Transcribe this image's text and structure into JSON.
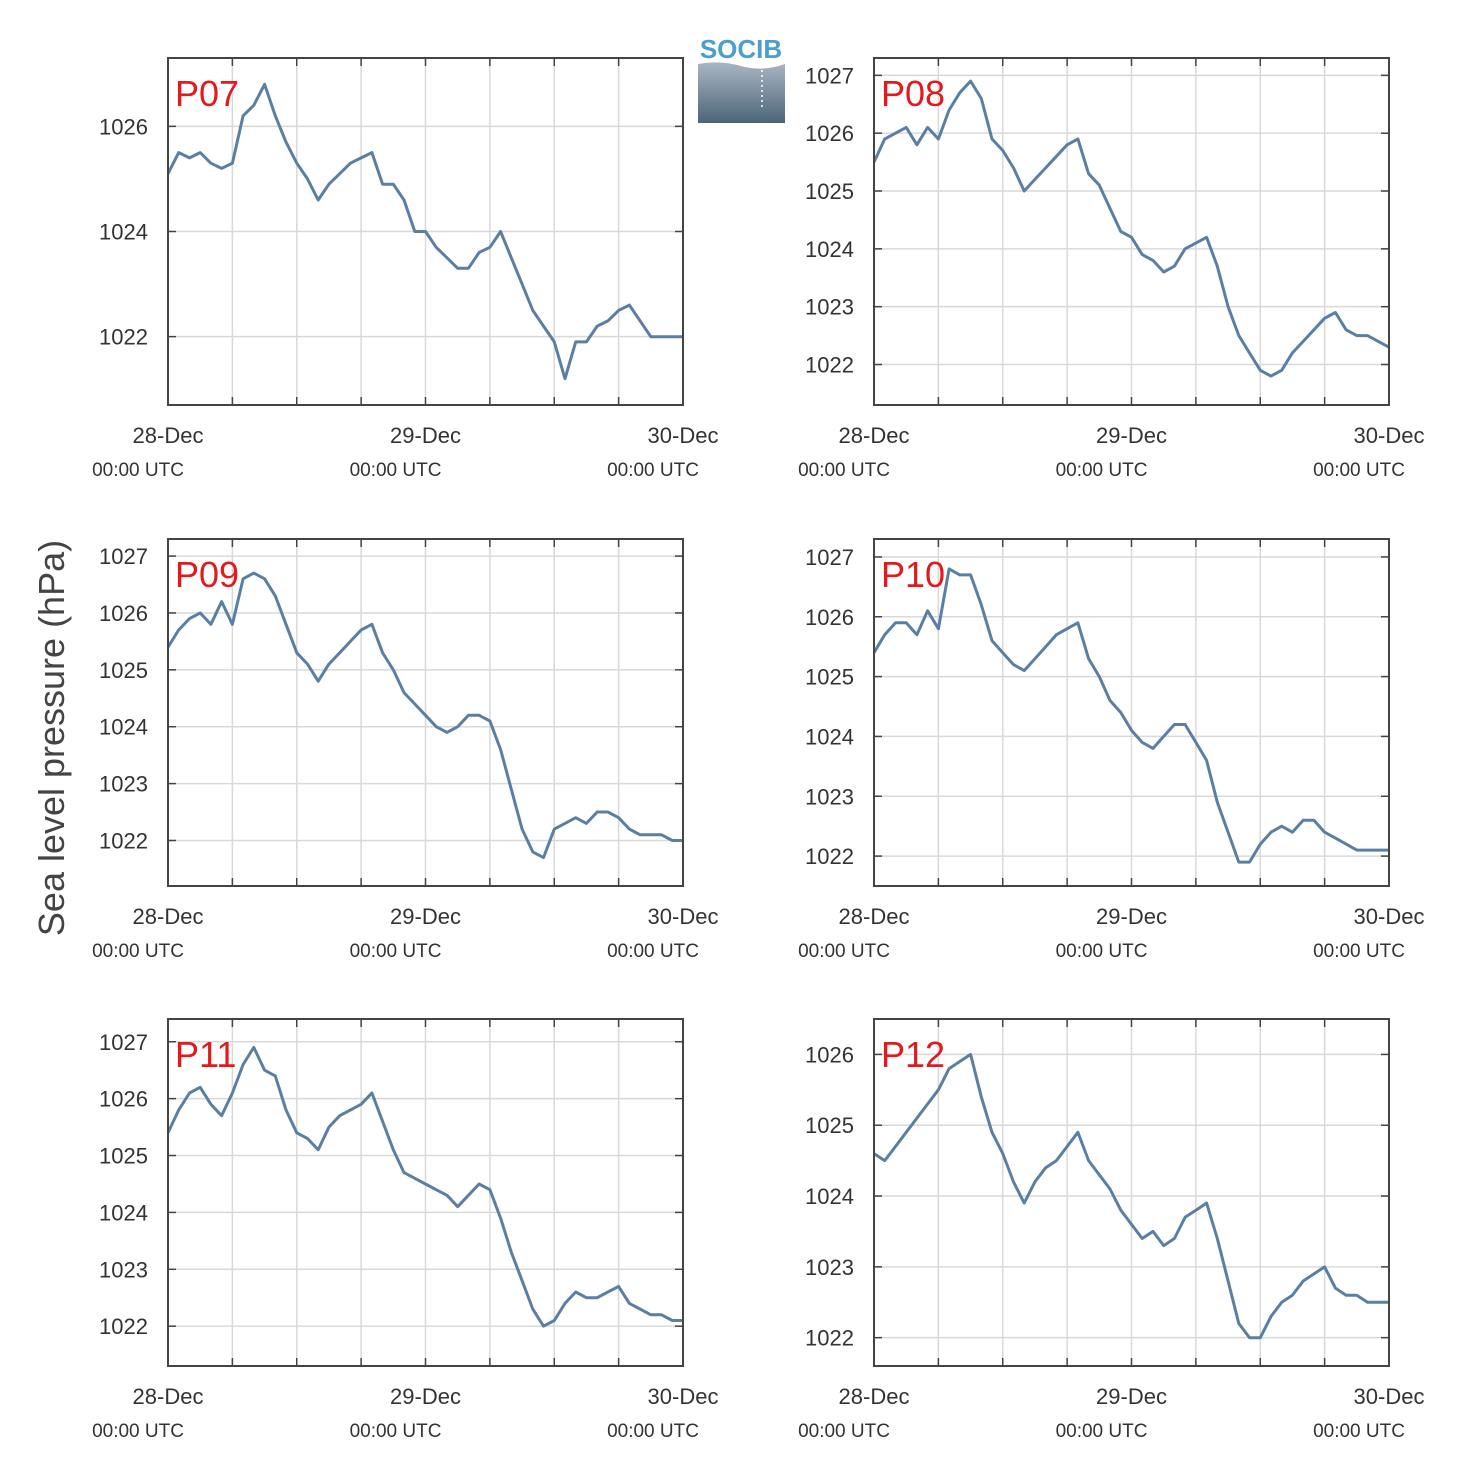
{
  "ylabel": "Sea level pressure (hPa)",
  "logo": {
    "text": "SOCIB",
    "color": "#4a9fd0"
  },
  "colors": {
    "line": "#5b7fa3",
    "station_label": "#e31a1c",
    "grid": "#d9d9d9",
    "axes": "#444444"
  },
  "xaxis": {
    "ticks": [
      {
        "x": 0,
        "date": "28-Dec",
        "time": "00:00 UTC"
      },
      {
        "x": 24,
        "date": "29-Dec",
        "time": "00:00 UTC"
      },
      {
        "x": 48,
        "date": "30-Dec",
        "time": "00:00 UTC"
      }
    ],
    "minor_ticks": [
      6,
      12,
      18,
      30,
      36,
      42
    ]
  },
  "chart_data": [
    {
      "type": "line",
      "station": "P07",
      "x_unit": "hours since 28-Dec 00:00 UTC",
      "xlim": [
        0,
        48
      ],
      "ylim": [
        1020.7,
        1027.3
      ],
      "yticks": [
        1022,
        1024,
        1026
      ],
      "series": [
        {
          "x": [
            0,
            1,
            2,
            3,
            4,
            5,
            6,
            7,
            8,
            9,
            10,
            11,
            12,
            13,
            14,
            15,
            16,
            17,
            18,
            19,
            20,
            21,
            22,
            23,
            24,
            25,
            26,
            27,
            28,
            29,
            30,
            31,
            32,
            33,
            34,
            35,
            36,
            37,
            38,
            39,
            40,
            41,
            42,
            43,
            44,
            45,
            46,
            47,
            48
          ],
          "values": [
            1025.1,
            1025.5,
            1025.4,
            1025.5,
            1025.3,
            1025.2,
            1025.3,
            1026.2,
            1026.4,
            1026.8,
            1026.2,
            1025.7,
            1025.3,
            1025.0,
            1024.6,
            1024.9,
            1025.1,
            1025.3,
            1025.4,
            1025.5,
            1024.9,
            1024.9,
            1024.6,
            1024.0,
            1024.0,
            1023.7,
            1023.5,
            1023.3,
            1023.3,
            1023.6,
            1023.7,
            1024.0,
            1023.5,
            1023.0,
            1022.5,
            1022.2,
            1021.9,
            1021.2,
            1021.9,
            1021.9,
            1022.2,
            1022.3,
            1022.5,
            1022.6,
            1022.3,
            1022.0,
            1022.0,
            1022.0,
            1022.0
          ]
        }
      ]
    },
    {
      "type": "line",
      "station": "P08",
      "x_unit": "hours since 28-Dec 00:00 UTC",
      "xlim": [
        0,
        48
      ],
      "ylim": [
        1021.3,
        1027.3
      ],
      "yticks": [
        1022,
        1023,
        1024,
        1025,
        1026,
        1027
      ],
      "series": [
        {
          "x": [
            0,
            1,
            2,
            3,
            4,
            5,
            6,
            7,
            8,
            9,
            10,
            11,
            12,
            13,
            14,
            15,
            16,
            17,
            18,
            19,
            20,
            21,
            22,
            23,
            24,
            25,
            26,
            27,
            28,
            29,
            30,
            31,
            32,
            33,
            34,
            35,
            36,
            37,
            38,
            39,
            40,
            41,
            42,
            43,
            44,
            45,
            46,
            47,
            48
          ],
          "values": [
            1025.5,
            1025.9,
            1026.0,
            1026.1,
            1025.8,
            1026.1,
            1025.9,
            1026.4,
            1026.7,
            1026.9,
            1026.6,
            1025.9,
            1025.7,
            1025.4,
            1025.0,
            1025.2,
            1025.4,
            1025.6,
            1025.8,
            1025.9,
            1025.3,
            1025.1,
            1024.7,
            1024.3,
            1024.2,
            1023.9,
            1023.8,
            1023.6,
            1023.7,
            1024.0,
            1024.1,
            1024.2,
            1023.7,
            1023.0,
            1022.5,
            1022.2,
            1021.9,
            1021.8,
            1021.9,
            1022.2,
            1022.4,
            1022.6,
            1022.8,
            1022.9,
            1022.6,
            1022.5,
            1022.5,
            1022.4,
            1022.3
          ]
        }
      ]
    },
    {
      "type": "line",
      "station": "P09",
      "x_unit": "hours since 28-Dec 00:00 UTC",
      "xlim": [
        0,
        48
      ],
      "ylim": [
        1021.2,
        1027.3
      ],
      "yticks": [
        1022,
        1023,
        1024,
        1025,
        1026,
        1027
      ],
      "series": [
        {
          "x": [
            0,
            1,
            2,
            3,
            4,
            5,
            6,
            7,
            8,
            9,
            10,
            11,
            12,
            13,
            14,
            15,
            16,
            17,
            18,
            19,
            20,
            21,
            22,
            23,
            24,
            25,
            26,
            27,
            28,
            29,
            30,
            31,
            32,
            33,
            34,
            35,
            36,
            37,
            38,
            39,
            40,
            41,
            42,
            43,
            44,
            45,
            46,
            47,
            48
          ],
          "values": [
            1025.4,
            1025.7,
            1025.9,
            1026.0,
            1025.8,
            1026.2,
            1025.8,
            1026.6,
            1026.7,
            1026.6,
            1026.3,
            1025.8,
            1025.3,
            1025.1,
            1024.8,
            1025.1,
            1025.3,
            1025.5,
            1025.7,
            1025.8,
            1025.3,
            1025.0,
            1024.6,
            1024.4,
            1024.2,
            1024.0,
            1023.9,
            1024.0,
            1024.2,
            1024.2,
            1024.1,
            1023.6,
            1022.9,
            1022.2,
            1021.8,
            1021.7,
            1022.2,
            1022.3,
            1022.4,
            1022.3,
            1022.5,
            1022.5,
            1022.4,
            1022.2,
            1022.1,
            1022.1,
            1022.1,
            1022.0,
            1022.0
          ]
        }
      ]
    },
    {
      "type": "line",
      "station": "P10",
      "x_unit": "hours since 28-Dec 00:00 UTC",
      "xlim": [
        0,
        48
      ],
      "ylim": [
        1021.5,
        1027.3
      ],
      "yticks": [
        1022,
        1023,
        1024,
        1025,
        1026,
        1027
      ],
      "series": [
        {
          "x": [
            0,
            1,
            2,
            3,
            4,
            5,
            6,
            7,
            8,
            9,
            10,
            11,
            12,
            13,
            14,
            15,
            16,
            17,
            18,
            19,
            20,
            21,
            22,
            23,
            24,
            25,
            26,
            27,
            28,
            29,
            30,
            31,
            32,
            33,
            34,
            35,
            36,
            37,
            38,
            39,
            40,
            41,
            42,
            43,
            44,
            45,
            46,
            47,
            48
          ],
          "values": [
            1025.4,
            1025.7,
            1025.9,
            1025.9,
            1025.7,
            1026.1,
            1025.8,
            1026.8,
            1026.7,
            1026.7,
            1026.2,
            1025.6,
            1025.4,
            1025.2,
            1025.1,
            1025.3,
            1025.5,
            1025.7,
            1025.8,
            1025.9,
            1025.3,
            1025.0,
            1024.6,
            1024.4,
            1024.1,
            1023.9,
            1023.8,
            1024.0,
            1024.2,
            1024.2,
            1023.9,
            1023.6,
            1022.9,
            1022.4,
            1021.9,
            1021.9,
            1022.2,
            1022.4,
            1022.5,
            1022.4,
            1022.6,
            1022.6,
            1022.4,
            1022.3,
            1022.2,
            1022.1,
            1022.1,
            1022.1,
            1022.1
          ]
        }
      ]
    },
    {
      "type": "line",
      "station": "P11",
      "x_unit": "hours since 28-Dec 00:00 UTC",
      "xlim": [
        0,
        48
      ],
      "ylim": [
        1021.3,
        1027.4
      ],
      "yticks": [
        1022,
        1023,
        1024,
        1025,
        1026,
        1027
      ],
      "series": [
        {
          "x": [
            0,
            1,
            2,
            3,
            4,
            5,
            6,
            7,
            8,
            9,
            10,
            11,
            12,
            13,
            14,
            15,
            16,
            17,
            18,
            19,
            20,
            21,
            22,
            23,
            24,
            25,
            26,
            27,
            28,
            29,
            30,
            31,
            32,
            33,
            34,
            35,
            36,
            37,
            38,
            39,
            40,
            41,
            42,
            43,
            44,
            45,
            46,
            47,
            48
          ],
          "values": [
            1025.4,
            1025.8,
            1026.1,
            1026.2,
            1025.9,
            1025.7,
            1026.1,
            1026.6,
            1026.9,
            1026.5,
            1026.4,
            1025.8,
            1025.4,
            1025.3,
            1025.1,
            1025.5,
            1025.7,
            1025.8,
            1025.9,
            1026.1,
            1025.6,
            1025.1,
            1024.7,
            1024.6,
            1024.5,
            1024.4,
            1024.3,
            1024.1,
            1024.3,
            1024.5,
            1024.4,
            1023.9,
            1023.3,
            1022.8,
            1022.3,
            1022.0,
            1022.1,
            1022.4,
            1022.6,
            1022.5,
            1022.5,
            1022.6,
            1022.7,
            1022.4,
            1022.3,
            1022.2,
            1022.2,
            1022.1,
            1022.1
          ]
        }
      ]
    },
    {
      "type": "line",
      "station": "P12",
      "x_unit": "hours since 28-Dec 00:00 UTC",
      "xlim": [
        0,
        48
      ],
      "ylim": [
        1021.6,
        1026.5
      ],
      "yticks": [
        1022,
        1023,
        1024,
        1025,
        1026
      ],
      "series": [
        {
          "x": [
            0,
            1,
            2,
            3,
            4,
            5,
            6,
            7,
            8,
            9,
            10,
            11,
            12,
            13,
            14,
            15,
            16,
            17,
            18,
            19,
            20,
            21,
            22,
            23,
            24,
            25,
            26,
            27,
            28,
            29,
            30,
            31,
            32,
            33,
            34,
            35,
            36,
            37,
            38,
            39,
            40,
            41,
            42,
            43,
            44,
            45,
            46,
            47,
            48
          ],
          "values": [
            1024.6,
            1024.5,
            1024.7,
            1024.9,
            1025.1,
            1025.3,
            1025.5,
            1025.8,
            1025.9,
            1026.0,
            1025.4,
            1024.9,
            1024.6,
            1024.2,
            1023.9,
            1024.2,
            1024.4,
            1024.5,
            1024.7,
            1024.9,
            1024.5,
            1024.3,
            1024.1,
            1023.8,
            1023.6,
            1023.4,
            1023.5,
            1023.3,
            1023.4,
            1023.7,
            1023.8,
            1023.9,
            1023.4,
            1022.8,
            1022.2,
            1022.0,
            1022.0,
            1022.3,
            1022.5,
            1022.6,
            1022.8,
            1022.9,
            1023.0,
            1022.7,
            1022.6,
            1022.6,
            1022.5,
            1022.5,
            1022.5
          ]
        }
      ]
    }
  ]
}
